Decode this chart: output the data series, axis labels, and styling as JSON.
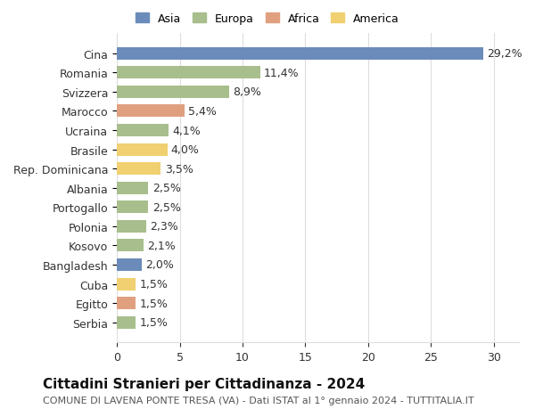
{
  "categories": [
    "Cina",
    "Romania",
    "Svizzera",
    "Marocco",
    "Ucraina",
    "Brasile",
    "Rep. Dominicana",
    "Albania",
    "Portogallo",
    "Polonia",
    "Kosovo",
    "Bangladesh",
    "Cuba",
    "Egitto",
    "Serbia"
  ],
  "values": [
    29.2,
    11.4,
    8.9,
    5.4,
    4.1,
    4.0,
    3.5,
    2.5,
    2.5,
    2.3,
    2.1,
    2.0,
    1.5,
    1.5,
    1.5
  ],
  "labels": [
    "29,2%",
    "11,4%",
    "8,9%",
    "5,4%",
    "4,1%",
    "4,0%",
    "3,5%",
    "2,5%",
    "2,5%",
    "2,3%",
    "2,1%",
    "2,0%",
    "1,5%",
    "1,5%",
    "1,5%"
  ],
  "continents": [
    "Asia",
    "Europa",
    "Europa",
    "Africa",
    "Europa",
    "America",
    "America",
    "Europa",
    "Europa",
    "Europa",
    "Europa",
    "Asia",
    "America",
    "Africa",
    "Europa"
  ],
  "continent_colors": {
    "Asia": "#6b8cba",
    "Europa": "#a8be8c",
    "Africa": "#e0a080",
    "America": "#f0d070"
  },
  "legend_order": [
    "Asia",
    "Europa",
    "Africa",
    "America"
  ],
  "title": "Cittadini Stranieri per Cittadinanza - 2024",
  "subtitle": "COMUNE DI LAVENA PONTE TRESA (VA) - Dati ISTAT al 1° gennaio 2024 - TUTTITALIA.IT",
  "xlim": [
    0,
    32
  ],
  "xticks": [
    0,
    5,
    10,
    15,
    20,
    25,
    30
  ],
  "background_color": "#ffffff",
  "grid_color": "#dddddd",
  "bar_height": 0.65,
  "title_fontsize": 11,
  "subtitle_fontsize": 8,
  "tick_fontsize": 9,
  "label_fontsize": 9
}
